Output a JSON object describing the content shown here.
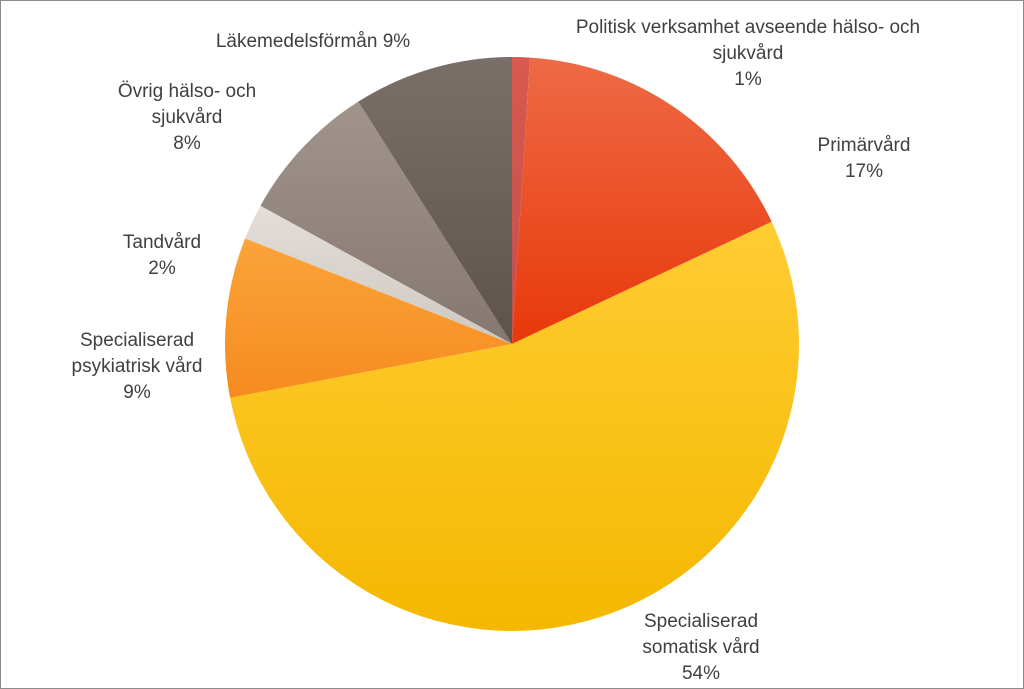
{
  "chart_data": {
    "type": "pie",
    "start_angle_deg": 0,
    "direction": "clockwise",
    "slices": [
      {
        "name": "Politisk verksamhet avseende hälso- och sjukvård",
        "value": 1,
        "label_lines": [
          "Politisk verksamhet avseende hälso- och",
          "sjukvård",
          "1%"
        ],
        "color": "#C0504D",
        "color_light": "#D9594F"
      },
      {
        "name": "Primärvård",
        "value": 17,
        "label_lines": [
          "Primärvård",
          "17%"
        ],
        "color": "#E8380A",
        "color_light": "#EE6A45"
      },
      {
        "name": "Specialiserad somatisk vård",
        "value": 54,
        "label_lines": [
          "Specialiserad",
          "somatisk vård",
          "54%"
        ],
        "color": "#F5B800",
        "color_light": "#FFCC33"
      },
      {
        "name": "Specialiserad psykiatrisk vård",
        "value": 9,
        "label_lines": [
          "Specialiserad",
          "psykiatrisk vård",
          "9%"
        ],
        "color": "#F68B1F",
        "color_light": "#FAA43A"
      },
      {
        "name": "Tandvård",
        "value": 2,
        "label_lines": [
          "Tandvård",
          "2%"
        ],
        "color": "#CFC8C2",
        "color_light": "#E3DEDA"
      },
      {
        "name": "Övrig hälso- och sjukvård",
        "value": 8,
        "label_lines": [
          "Övrig  hälso- och",
          "sjukvård",
          "8%"
        ],
        "color": "#857870",
        "color_light": "#A0948C"
      },
      {
        "name": "Läkemedelsförmån",
        "value": 9,
        "label_lines": [
          "Läkemedelsförmån 9%"
        ],
        "color": "#5E524C",
        "color_light": "#7A6F69"
      }
    ]
  }
}
